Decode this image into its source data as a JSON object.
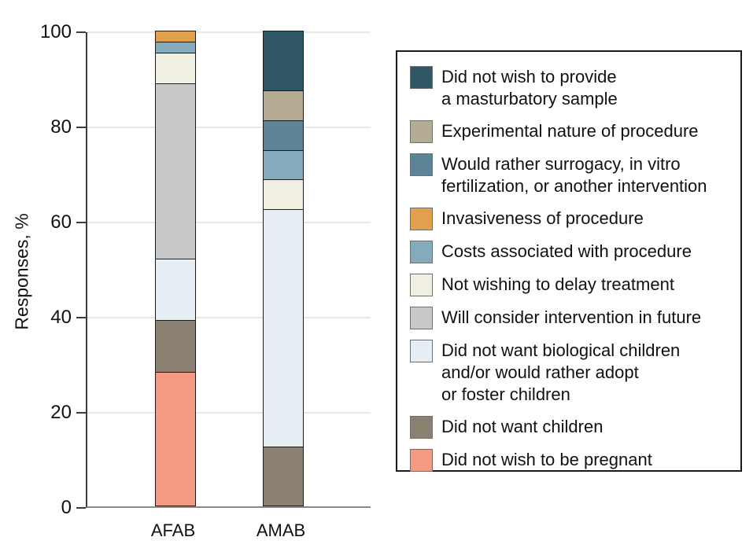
{
  "chart_data": {
    "type": "bar",
    "subtype": "stacked-vertical",
    "title": "",
    "xlabel": "",
    "ylabel": "Responses, %",
    "ylim": [
      0,
      100
    ],
    "yticks": [
      0,
      20,
      40,
      60,
      80,
      100
    ],
    "grid": "horizontal",
    "legend_position": "right",
    "categories": [
      "AFAB",
      "AMAB"
    ],
    "series": [
      {
        "name": "Did not wish to be pregnant",
        "color": "#f49a84",
        "values": [
          28.3,
          0
        ]
      },
      {
        "name": "Did not want children",
        "color": "#8a8173",
        "values": [
          10.9,
          12.5
        ]
      },
      {
        "name": "Did not want biological children and/or would rather adopt or foster children",
        "color": "#e7eef3",
        "values": [
          13.0,
          50.0
        ]
      },
      {
        "name": "Will consider intervention in future",
        "color": "#c8c9cb",
        "values": [
          37.0,
          0
        ]
      },
      {
        "name": "Not wishing to delay treatment",
        "color": "#f0efe2",
        "values": [
          6.5,
          6.25
        ]
      },
      {
        "name": "Costs associated with procedure",
        "color": "#85aabc",
        "values": [
          2.2,
          6.25
        ]
      },
      {
        "name": "Invasiveness of procedure",
        "color": "#e0a04d",
        "values": [
          2.2,
          0
        ]
      },
      {
        "name": "Would rather surrogacy, in vitro fertilization, or another intervention",
        "color": "#5e8395",
        "values": [
          0,
          6.25
        ]
      },
      {
        "name": "Experimental nature of procedure",
        "color": "#b5aa94",
        "values": [
          0,
          6.25
        ]
      },
      {
        "name": "Did not wish to provide a masturbatory sample",
        "color": "#2f5766",
        "values": [
          0,
          12.5
        ]
      }
    ]
  },
  "legend": {
    "items": [
      {
        "color": "#2f5766",
        "lines": [
          "Did not wish to provide",
          "a masturbatory sample"
        ]
      },
      {
        "color": "#b5aa94",
        "lines": [
          "Experimental nature of procedure"
        ]
      },
      {
        "color": "#5e8395",
        "lines": [
          "Would rather surrogacy, in vitro",
          "fertilization, or another intervention"
        ]
      },
      {
        "color": "#e0a04d",
        "lines": [
          "Invasiveness of procedure"
        ]
      },
      {
        "color": "#85aabc",
        "lines": [
          "Costs associated with procedure"
        ]
      },
      {
        "color": "#f0efe2",
        "lines": [
          "Not wishing to delay treatment"
        ]
      },
      {
        "color": "#c8c9cb",
        "lines": [
          "Will consider intervention in future"
        ]
      },
      {
        "color": "#e7eef3",
        "lines": [
          "Did not want biological children",
          "and/or would rather adopt",
          "or foster children"
        ]
      },
      {
        "color": "#8a8173",
        "lines": [
          "Did not want children"
        ]
      },
      {
        "color": "#f49a84",
        "lines": [
          "Did not wish to be pregnant"
        ]
      }
    ]
  }
}
